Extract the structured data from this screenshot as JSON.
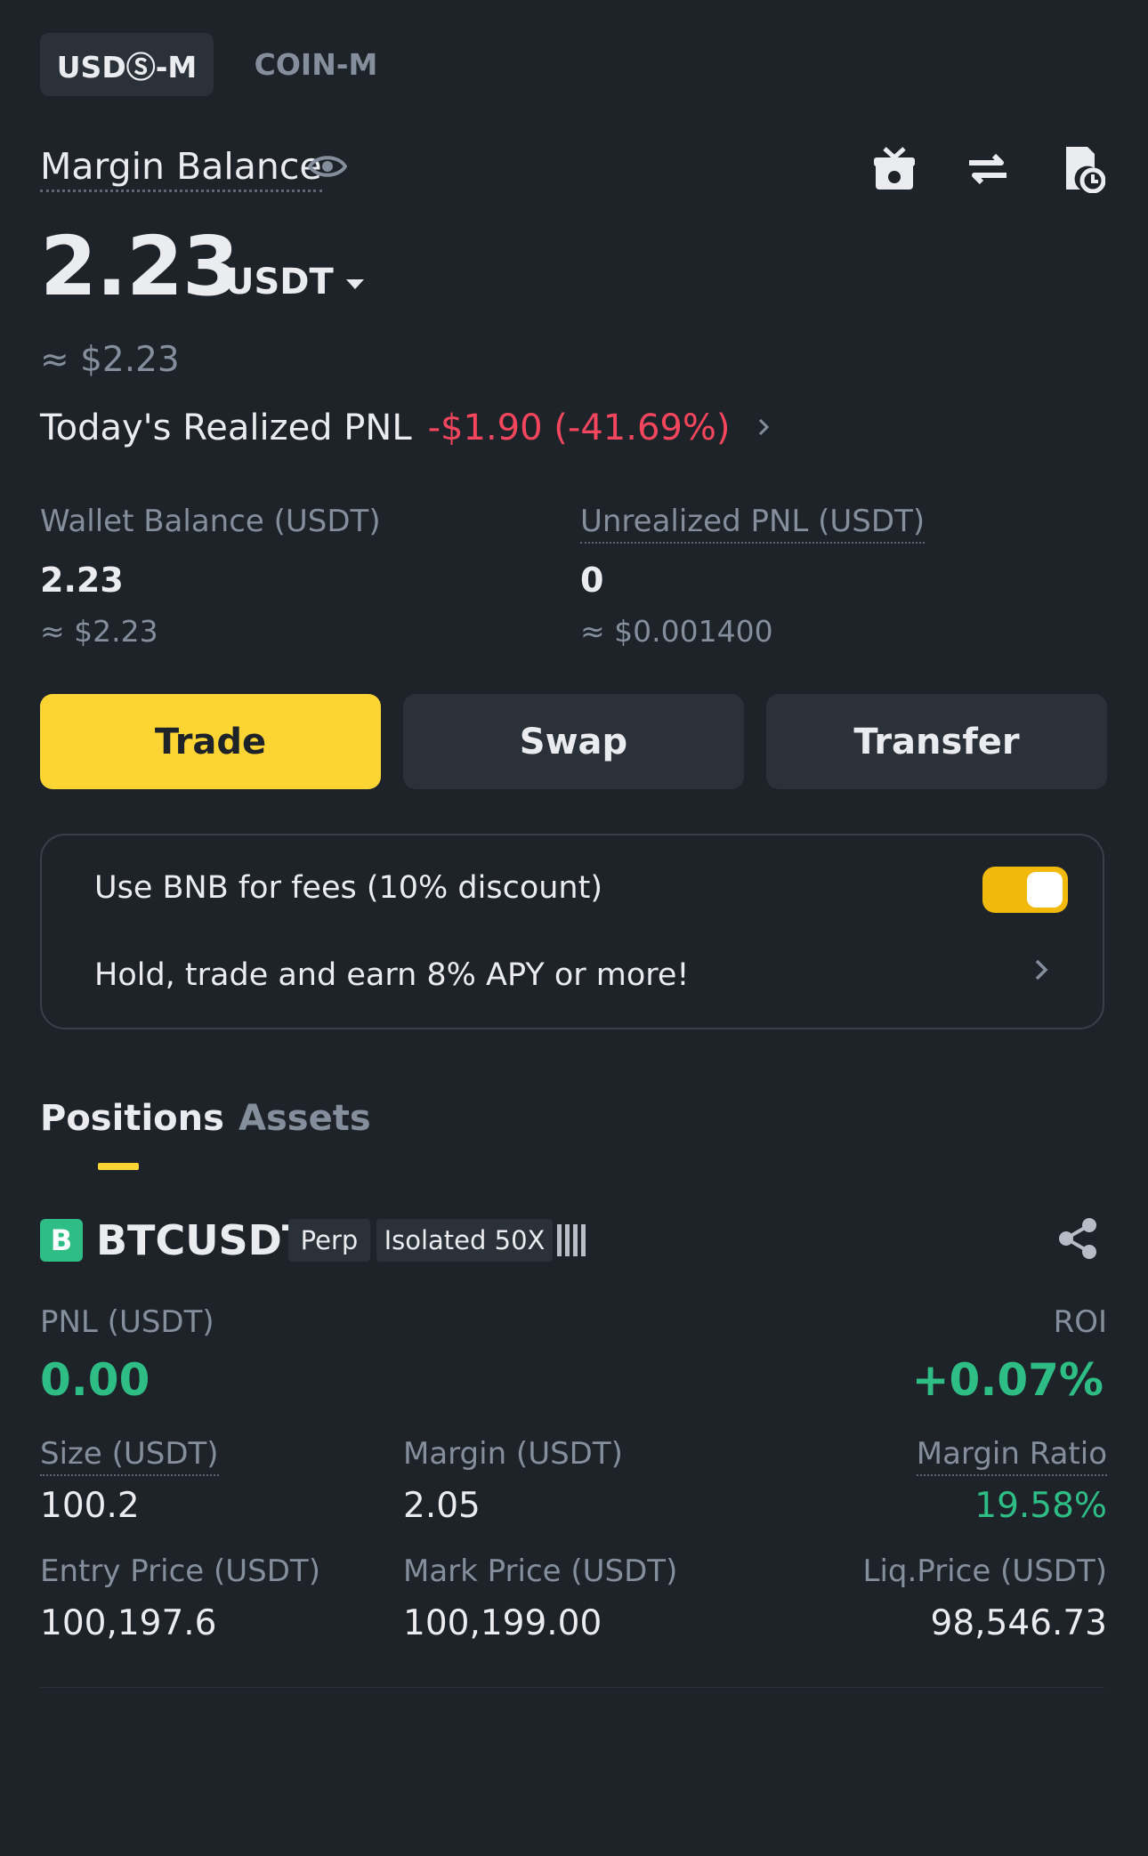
{
  "tabs": {
    "usds_m": "USDⓈ-M",
    "coin_m": "COIN-M"
  },
  "header": {
    "margin_balance_label": "Margin Balance",
    "icons": [
      "eye-icon",
      "gift-icon",
      "swap-arrows-icon",
      "history-icon"
    ]
  },
  "balance": {
    "amount": "2.23",
    "unit": "USDT",
    "approx_usd": "≈ $2.23"
  },
  "pnl_today": {
    "label": "Today's Realized PNL",
    "value": "-$1.90 (-41.69%)"
  },
  "wallet": {
    "label": "Wallet Balance (USDT)",
    "value": "2.23",
    "approx": "≈ $2.23"
  },
  "unrealized": {
    "label": "Unrealized PNL (USDT)",
    "value": "0",
    "approx": "≈ $0.001400"
  },
  "actions": {
    "trade": "Trade",
    "swap": "Swap",
    "transfer": "Transfer"
  },
  "bnb": {
    "fees_label": "Use BNB for fees (10% discount)",
    "fees_enabled": true,
    "promo": "Hold, trade and earn 8% APY or more!"
  },
  "section_tabs": {
    "positions": "Positions",
    "assets": "Assets",
    "active": "positions"
  },
  "position": {
    "side_badge": "B",
    "symbol": "BTCUSDT",
    "type_chip": "Perp",
    "margin_chip": "Isolated 50X",
    "pnl_label": "PNL (USDT)",
    "pnl_value": "0.00",
    "roi_label": "ROI",
    "roi_value": "+0.07%",
    "size_label": "Size (USDT)",
    "size_value": "100.2",
    "margin_label": "Margin (USDT)",
    "margin_value": "2.05",
    "margin_ratio_label": "Margin Ratio",
    "margin_ratio_value": "19.58%",
    "entry_label": "Entry Price (USDT)",
    "entry_value": "100,197.6",
    "mark_label": "Mark Price (USDT)",
    "mark_value": "100,199.00",
    "liq_label": "Liq.Price (USDT)",
    "liq_value": "98,546.73"
  },
  "colors": {
    "background": "#1e2329",
    "accent": "#fcd535",
    "loss": "#f6465d",
    "profit": "#2ebd85"
  }
}
